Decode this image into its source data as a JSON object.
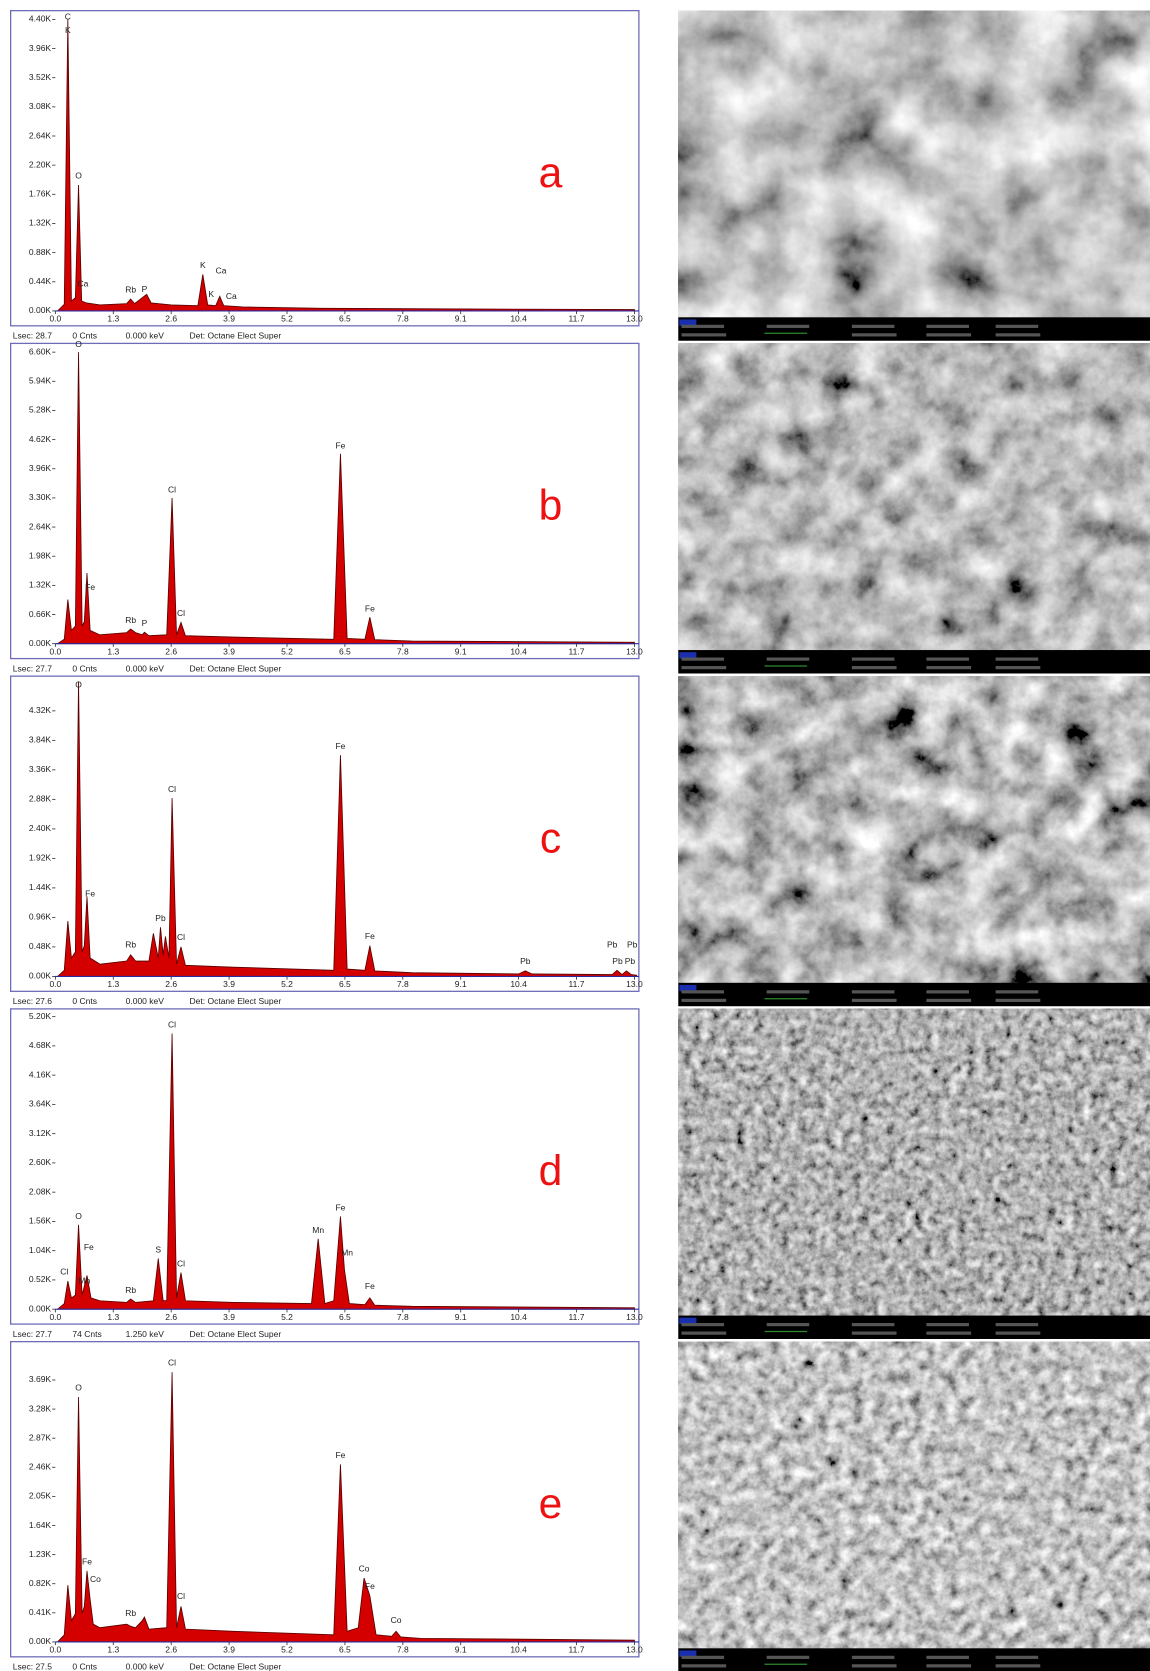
{
  "chart_data": [
    {
      "type": "area",
      "label": "a",
      "color": "#d40000",
      "x": [
        0.05,
        0.2,
        0.28,
        0.36,
        0.45,
        0.52,
        0.59,
        0.7,
        1.0,
        1.6,
        1.69,
        1.78,
        1.95,
        2.05,
        2.15,
        2.6,
        3.2,
        3.31,
        3.42,
        3.6,
        3.69,
        3.78,
        4.2,
        6,
        9,
        13
      ],
      "values": [
        0,
        100,
        4400,
        150,
        200,
        1900,
        150,
        120,
        90,
        110,
        180,
        110,
        200,
        250,
        120,
        90,
        80,
        550,
        90,
        80,
        220,
        80,
        60,
        40,
        30,
        20
      ],
      "xlim": [
        0,
        13.1
      ],
      "xticks": [
        {
          "value": 0,
          "label": "0.0"
        },
        1.3,
        2.6,
        3.9,
        5.2,
        6.5,
        7.8,
        9.1,
        10.4,
        11.7,
        {
          "value": 13,
          "label": "13.0"
        }
      ],
      "ylim": [
        0,
        4500
      ],
      "yticks": [
        {
          "value": 0,
          "label": "0.00K"
        },
        {
          "value": 440,
          "label": "0.44K"
        },
        {
          "value": 880,
          "label": "0.88K"
        },
        {
          "value": 1320,
          "label": "1.32K"
        },
        {
          "value": 1760,
          "label": "1.76K"
        },
        {
          "value": 2200,
          "label": "2.20K"
        },
        {
          "value": 2640,
          "label": "2.64K"
        },
        {
          "value": 3080,
          "label": "3.08K"
        },
        {
          "value": 3520,
          "label": "3.52K"
        },
        {
          "value": 3960,
          "label": "3.96K"
        },
        {
          "value": 4400,
          "label": "4.40K"
        }
      ],
      "annotations": [
        {
          "text": "C",
          "x": 0.28,
          "y": 4350
        },
        {
          "text": "K",
          "x": 0.28,
          "y": 4150
        },
        {
          "text": "O",
          "x": 0.52,
          "y": 1950
        },
        {
          "text": "Ca",
          "x": 0.62,
          "y": 320
        },
        {
          "text": "Rb",
          "x": 1.69,
          "y": 230
        },
        {
          "text": "P",
          "x": 2.0,
          "y": 240
        },
        {
          "text": "K",
          "x": 3.31,
          "y": 600
        },
        {
          "text": "Ca",
          "x": 3.72,
          "y": 520
        },
        {
          "text": "K",
          "x": 3.5,
          "y": 160
        },
        {
          "text": "Ca",
          "x": 3.95,
          "y": 130
        }
      ],
      "footer": [
        "Lsec: 28.7",
        "0 Cnts",
        "0.000 keV",
        "Det: Octane Elect Super"
      ]
    },
    {
      "type": "area",
      "label": "b",
      "color": "#d40000",
      "x": [
        0.05,
        0.2,
        0.28,
        0.36,
        0.45,
        0.52,
        0.6,
        0.65,
        0.71,
        0.78,
        1.0,
        1.6,
        1.69,
        1.8,
        1.95,
        2.0,
        2.1,
        2.5,
        2.62,
        2.72,
        2.82,
        2.92,
        4,
        6.25,
        6.4,
        6.55,
        6.95,
        7.06,
        7.17,
        8,
        13
      ],
      "values": [
        0,
        100,
        1000,
        300,
        400,
        6600,
        400,
        500,
        1600,
        300,
        200,
        250,
        330,
        250,
        200,
        260,
        180,
        200,
        3300,
        200,
        480,
        180,
        150,
        100,
        4300,
        120,
        100,
        600,
        90,
        60,
        30
      ],
      "xlim": [
        0,
        13.1
      ],
      "xticks": [
        {
          "value": 0,
          "label": "0.0"
        },
        1.3,
        2.6,
        3.9,
        5.2,
        6.5,
        7.8,
        9.1,
        10.4,
        11.7,
        {
          "value": 13,
          "label": "13.0"
        }
      ],
      "ylim": [
        0,
        6750
      ],
      "yticks": [
        {
          "value": 0,
          "label": "0.00K"
        },
        {
          "value": 660,
          "label": "0.66K"
        },
        {
          "value": 1320,
          "label": "1.32K"
        },
        {
          "value": 1980,
          "label": "1.98K"
        },
        {
          "value": 2640,
          "label": "2.64K"
        },
        {
          "value": 3300,
          "label": "3.30K"
        },
        {
          "value": 3960,
          "label": "3.96K"
        },
        {
          "value": 4620,
          "label": "4.62K"
        },
        {
          "value": 5280,
          "label": "5.28K"
        },
        {
          "value": 5940,
          "label": "5.94K"
        },
        {
          "value": 6600,
          "label": "6.60K"
        }
      ],
      "annotations": [
        {
          "text": "O",
          "x": 0.52,
          "y": 6650
        },
        {
          "text": "Fe",
          "x": 0.78,
          "y": 1150
        },
        {
          "text": "Rb",
          "x": 1.69,
          "y": 400
        },
        {
          "text": "P",
          "x": 2.0,
          "y": 330
        },
        {
          "text": "Cl",
          "x": 2.62,
          "y": 3350
        },
        {
          "text": "Cl",
          "x": 2.82,
          "y": 560
        },
        {
          "text": "Fe",
          "x": 6.4,
          "y": 4350
        },
        {
          "text": "Fe",
          "x": 7.06,
          "y": 660
        }
      ],
      "footer": [
        "Lsec: 27.7",
        "0 Cnts",
        "0.000 keV",
        "Det: Octane Elect Super"
      ]
    },
    {
      "type": "area",
      "label": "c",
      "color": "#d40000",
      "x": [
        0.05,
        0.2,
        0.28,
        0.36,
        0.45,
        0.52,
        0.6,
        0.65,
        0.71,
        0.78,
        1.0,
        1.6,
        1.69,
        1.8,
        2.1,
        2.2,
        2.31,
        2.36,
        2.42,
        2.47,
        2.55,
        2.62,
        2.72,
        2.82,
        2.92,
        4,
        6.25,
        6.4,
        6.55,
        6.95,
        7.06,
        7.17,
        8,
        10.4,
        10.55,
        10.7,
        12.5,
        12.61,
        12.72,
        12.82,
        12.93,
        13.05
      ],
      "values": [
        0,
        100,
        900,
        300,
        400,
        4800,
        400,
        500,
        1300,
        300,
        200,
        250,
        350,
        250,
        250,
        700,
        300,
        800,
        350,
        650,
        300,
        2900,
        200,
        480,
        180,
        150,
        100,
        3600,
        120,
        100,
        500,
        90,
        60,
        40,
        90,
        40,
        30,
        100,
        30,
        90,
        30,
        20
      ],
      "xlim": [
        0,
        13.1
      ],
      "xticks": [
        {
          "value": 0,
          "label": "0.0"
        },
        1.3,
        2.6,
        3.9,
        5.2,
        6.5,
        7.8,
        9.1,
        10.4,
        11.7,
        {
          "value": 13,
          "label": "13.0"
        }
      ],
      "ylim": [
        0,
        4850
      ],
      "yticks": [
        {
          "value": 0,
          "label": "0.00K"
        },
        {
          "value": 480,
          "label": "0.48K"
        },
        {
          "value": 960,
          "label": "0.96K"
        },
        {
          "value": 1440,
          "label": "1.44K"
        },
        {
          "value": 1920,
          "label": "1.92K"
        },
        {
          "value": 2400,
          "label": "2.40K"
        },
        {
          "value": 2880,
          "label": "2.88K"
        },
        {
          "value": 3360,
          "label": "3.36K"
        },
        {
          "value": 3840,
          "label": "3.84K"
        },
        {
          "value": 4320,
          "label": "4.32K"
        }
      ],
      "annotations": [
        {
          "text": "O",
          "x": 0.52,
          "y": 4650
        },
        {
          "text": "Fe",
          "x": 0.78,
          "y": 1250
        },
        {
          "text": "Rb",
          "x": 1.69,
          "y": 420
        },
        {
          "text": "Pb",
          "x": 2.36,
          "y": 850
        },
        {
          "text": "Cl",
          "x": 2.62,
          "y": 2950
        },
        {
          "text": "Cl",
          "x": 2.82,
          "y": 540
        },
        {
          "text": "Fe",
          "x": 6.4,
          "y": 3650
        },
        {
          "text": "Fe",
          "x": 7.06,
          "y": 560
        },
        {
          "text": "Pb",
          "x": 10.55,
          "y": 150
        },
        {
          "text": "Pb",
          "x": 12.5,
          "y": 420
        },
        {
          "text": "Pb",
          "x": 12.95,
          "y": 420
        },
        {
          "text": "Pb",
          "x": 12.62,
          "y": 150
        },
        {
          "text": "Pb",
          "x": 12.9,
          "y": 150
        }
      ],
      "footer": [
        "Lsec: 27.6",
        "0 Cnts",
        "0.000 keV",
        "Det: Octane Elect Super"
      ]
    },
    {
      "type": "area",
      "label": "d",
      "color": "#d40000",
      "x": [
        0.05,
        0.2,
        0.28,
        0.36,
        0.45,
        0.52,
        0.6,
        0.71,
        0.8,
        1.0,
        1.6,
        1.69,
        1.8,
        2.2,
        2.31,
        2.42,
        2.5,
        2.62,
        2.72,
        2.82,
        2.92,
        4,
        5.75,
        5.9,
        6.05,
        6.25,
        6.4,
        6.49,
        6.6,
        6.95,
        7.06,
        7.17,
        8,
        13
      ],
      "values": [
        0,
        100,
        500,
        200,
        250,
        1500,
        250,
        600,
        200,
        150,
        120,
        180,
        120,
        150,
        900,
        150,
        150,
        4900,
        200,
        650,
        150,
        120,
        100,
        1250,
        100,
        150,
        1650,
        700,
        100,
        80,
        200,
        70,
        50,
        25
      ],
      "xlim": [
        0,
        13.1
      ],
      "xticks": [
        {
          "value": 0,
          "label": "0.0"
        },
        1.3,
        2.6,
        3.9,
        5.2,
        6.5,
        7.8,
        9.1,
        10.4,
        11.7,
        {
          "value": 13,
          "label": "13.0"
        }
      ],
      "ylim": [
        0,
        5300
      ],
      "yticks": [
        {
          "value": 0,
          "label": "0.00K"
        },
        {
          "value": 520,
          "label": "0.52K"
        },
        {
          "value": 1040,
          "label": "1.04K"
        },
        {
          "value": 1560,
          "label": "1.56K"
        },
        {
          "value": 2080,
          "label": "2.08K"
        },
        {
          "value": 2600,
          "label": "2.60K"
        },
        {
          "value": 3120,
          "label": "3.12K"
        },
        {
          "value": 3640,
          "label": "3.64K"
        },
        {
          "value": 4160,
          "label": "4.16K"
        },
        {
          "value": 4680,
          "label": "4.68K"
        },
        {
          "value": 5200,
          "label": "5.20K"
        }
      ],
      "annotations": [
        {
          "text": "Cl",
          "x": 2.62,
          "y": 4950
        },
        {
          "text": "O",
          "x": 0.52,
          "y": 1550
        },
        {
          "text": "Fe",
          "x": 0.75,
          "y": 1000
        },
        {
          "text": "Cl",
          "x": 0.2,
          "y": 560
        },
        {
          "text": "Mn",
          "x": 0.65,
          "y": 400
        },
        {
          "text": "Rb",
          "x": 1.69,
          "y": 230
        },
        {
          "text": "S",
          "x": 2.31,
          "y": 950
        },
        {
          "text": "Cl",
          "x": 2.82,
          "y": 700
        },
        {
          "text": "Mn",
          "x": 5.9,
          "y": 1300
        },
        {
          "text": "Fe",
          "x": 6.4,
          "y": 1700
        },
        {
          "text": "Mn",
          "x": 6.55,
          "y": 900
        },
        {
          "text": "Fe",
          "x": 7.06,
          "y": 300
        }
      ],
      "footer": [
        "Lsec: 27.7",
        "74 Cnts",
        "1.250 keV",
        "Det: Octane Elect Super"
      ]
    },
    {
      "type": "area",
      "label": "e",
      "color": "#d40000",
      "x": [
        0.05,
        0.2,
        0.28,
        0.36,
        0.45,
        0.52,
        0.6,
        0.65,
        0.71,
        0.78,
        0.85,
        1.0,
        1.6,
        1.69,
        1.8,
        1.95,
        2.0,
        2.1,
        2.5,
        2.62,
        2.72,
        2.82,
        2.92,
        4,
        6.25,
        6.4,
        6.55,
        6.8,
        6.93,
        7.06,
        7.2,
        7.55,
        7.65,
        7.75,
        8.2,
        13
      ],
      "values": [
        0,
        100,
        800,
        300,
        400,
        3450,
        400,
        500,
        1000,
        600,
        250,
        200,
        250,
        220,
        200,
        300,
        350,
        180,
        200,
        3800,
        200,
        500,
        180,
        150,
        100,
        2500,
        150,
        200,
        900,
        650,
        100,
        80,
        150,
        70,
        50,
        25
      ],
      "xlim": [
        0,
        13.1
      ],
      "xticks": [
        {
          "value": 0,
          "label": "0.0"
        },
        1.3,
        2.6,
        3.9,
        5.2,
        6.5,
        7.8,
        9.1,
        10.4,
        11.7,
        {
          "value": 13,
          "label": "13.0"
        }
      ],
      "ylim": [
        0,
        4200
      ],
      "yticks": [
        {
          "value": 0,
          "label": "0.00K"
        },
        {
          "value": 410,
          "label": "0.41K"
        },
        {
          "value": 820,
          "label": "0.82K"
        },
        {
          "value": 1230,
          "label": "1.23K"
        },
        {
          "value": 1640,
          "label": "1.64K"
        },
        {
          "value": 2050,
          "label": "2.05K"
        },
        {
          "value": 2460,
          "label": "2.46K"
        },
        {
          "value": 2870,
          "label": "2.87K"
        },
        {
          "value": 3280,
          "label": "3.28K"
        },
        {
          "value": 3690,
          "label": "3.69K"
        }
      ],
      "annotations": [
        {
          "text": "Cl",
          "x": 2.62,
          "y": 3850
        },
        {
          "text": "O",
          "x": 0.52,
          "y": 3500
        },
        {
          "text": "Fe",
          "x": 0.71,
          "y": 1050
        },
        {
          "text": "Co",
          "x": 0.9,
          "y": 800
        },
        {
          "text": "Rb",
          "x": 1.69,
          "y": 320
        },
        {
          "text": "Cl",
          "x": 2.82,
          "y": 560
        },
        {
          "text": "Fe",
          "x": 6.4,
          "y": 2550
        },
        {
          "text": "Co",
          "x": 6.93,
          "y": 950
        },
        {
          "text": "Fe",
          "x": 7.06,
          "y": 700
        },
        {
          "text": "Co",
          "x": 7.65,
          "y": 220
        }
      ],
      "footer": [
        "Lsec: 27.5",
        "0 Cnts",
        "0.000 keV",
        "Det: Octane Elect Super"
      ]
    }
  ]
}
